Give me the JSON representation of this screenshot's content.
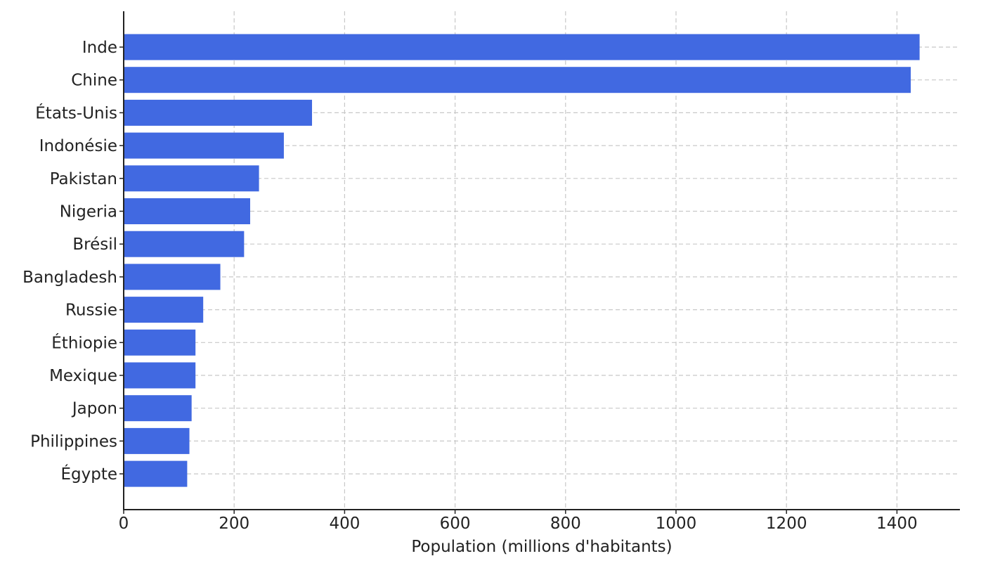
{
  "chart_data": {
    "type": "bar",
    "orientation": "horizontal",
    "title": "",
    "xlabel": "Population (millions d'habitants)",
    "ylabel": "",
    "categories": [
      "Inde",
      "Chine",
      "États-Unis",
      "Indonésie",
      "Pakistan",
      "Nigeria",
      "Brésil",
      "Bangladesh",
      "Russie",
      "Éthiopie",
      "Mexique",
      "Japon",
      "Philippines",
      "Égypte"
    ],
    "values": [
      1441,
      1425,
      341,
      290,
      245,
      229,
      218,
      175,
      144,
      130,
      130,
      123,
      119,
      115
    ],
    "xlim": [
      0,
      1515
    ],
    "xticks": [
      0,
      200,
      400,
      600,
      800,
      1000,
      1200,
      1400
    ],
    "xtick_labels": [
      "0",
      "200",
      "400",
      "600",
      "800",
      "1000",
      "1200",
      "1400"
    ],
    "bar_color": "#4169e1",
    "grid": true
  }
}
